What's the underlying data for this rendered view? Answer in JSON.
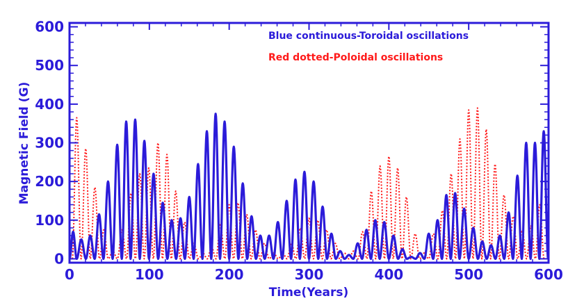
{
  "chart_data": {
    "type": "line",
    "title": "",
    "xlabel": "Time(Years)",
    "ylabel": "Magnetic Field (G)",
    "xlim": [
      0,
      600
    ],
    "ylim": [
      -10,
      610
    ],
    "x_ticks": [
      0,
      100,
      200,
      300,
      400,
      500,
      600
    ],
    "y_ticks": [
      0,
      100,
      200,
      300,
      400,
      500,
      600
    ],
    "grid": false,
    "legend": [
      {
        "name": "Blue continuous-Toroidal oscillations",
        "color": "#2b1bd9",
        "location": "top-right"
      },
      {
        "name": "Red dotted-Poloidal oscillations",
        "color": "#ff1a1a",
        "location": "top-right"
      }
    ],
    "series": [
      {
        "name": "Toroidal",
        "style": "solid",
        "color": "#2b1bd9",
        "peaks_x": [
          3,
          15,
          26,
          37,
          48,
          60,
          71,
          82,
          94,
          105,
          117,
          128,
          139,
          150,
          161,
          172,
          183,
          194,
          206,
          217,
          228,
          239,
          250,
          261,
          272,
          283,
          294,
          306,
          317,
          328,
          339,
          350,
          361,
          372,
          383,
          394,
          406,
          417,
          428,
          439,
          450,
          461,
          472,
          483,
          494,
          506,
          517,
          528,
          539,
          550,
          561,
          572,
          583,
          594
        ],
        "peaks_y": [
          70,
          50,
          60,
          115,
          200,
          295,
          355,
          360,
          305,
          220,
          145,
          100,
          105,
          160,
          245,
          330,
          375,
          355,
          290,
          195,
          110,
          60,
          60,
          95,
          150,
          205,
          225,
          200,
          135,
          65,
          20,
          10,
          40,
          75,
          100,
          95,
          60,
          25,
          5,
          15,
          65,
          100,
          165,
          170,
          130,
          80,
          45,
          35,
          60,
          120,
          215,
          300,
          300,
          330
        ]
      },
      {
        "name": "Poloidal",
        "style": "dotted",
        "color": "#ff1a1a",
        "peaks_x": [
          9,
          20,
          32,
          43,
          54,
          66,
          77,
          88,
          99,
          111,
          122,
          133,
          144,
          156,
          167,
          178,
          189,
          200,
          211,
          222,
          233,
          244,
          256,
          267,
          278,
          289,
          300,
          311,
          322,
          333,
          344,
          356,
          367,
          378,
          389,
          400,
          411,
          422,
          433,
          444,
          456,
          467,
          478,
          489,
          500,
          511,
          522,
          533,
          544,
          556,
          567,
          578,
          589
        ],
        "peaks_y": [
          365,
          285,
          185,
          75,
          20,
          75,
          170,
          220,
          235,
          300,
          270,
          175,
          95,
          40,
          15,
          30,
          90,
          140,
          145,
          115,
          75,
          40,
          15,
          15,
          40,
          80,
          105,
          100,
          75,
          40,
          15,
          20,
          70,
          175,
          240,
          265,
          235,
          160,
          65,
          15,
          65,
          125,
          220,
          310,
          385,
          390,
          335,
          245,
          165,
          110,
          75,
          85,
          140
        ]
      }
    ]
  },
  "colors": {
    "axis": "#2b1bd9",
    "toroidal": "#2b1bd9",
    "poloidal": "#ff1a1a"
  }
}
